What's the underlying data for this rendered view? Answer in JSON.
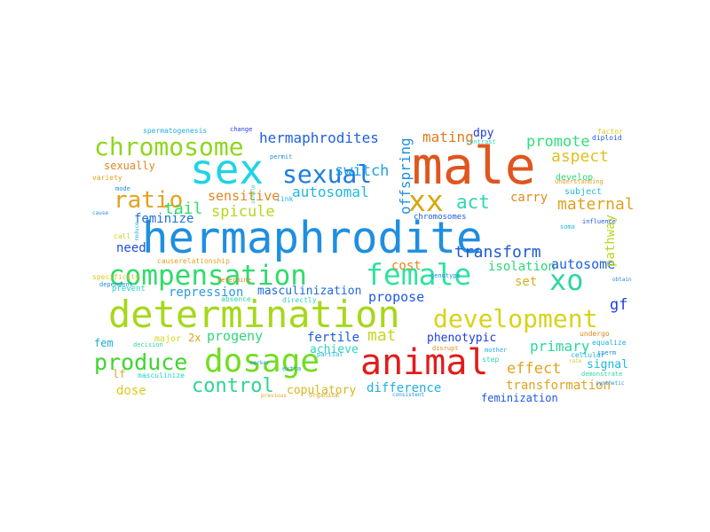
{
  "words": [
    {
      "text": "hermaphrodite",
      "color": "#1f8fe0"
    },
    {
      "text": "male",
      "color": "#e0551f"
    },
    {
      "text": "sex",
      "color": "#1fd3e6"
    },
    {
      "text": "determination",
      "color": "#a6d81a"
    },
    {
      "text": "compensation",
      "color": "#2edc6b"
    },
    {
      "text": "dosage",
      "color": "#6fde1f"
    },
    {
      "text": "animal",
      "color": "#e21c1c"
    },
    {
      "text": "chromosome",
      "color": "#8fd61f"
    },
    {
      "text": "female",
      "color": "#2ee3a0"
    },
    {
      "text": "development",
      "color": "#d9d21a"
    },
    {
      "text": "sexual",
      "color": "#1f7be0"
    },
    {
      "text": "xx",
      "color": "#d6a70f"
    },
    {
      "text": "xo",
      "color": "#2ed6a4"
    },
    {
      "text": "ratio",
      "color": "#e3a21f"
    },
    {
      "text": "produce",
      "color": "#3dd62e"
    },
    {
      "text": "control",
      "color": "#2ed68f"
    },
    {
      "text": "hermaphrodites",
      "color": "#1f5fe0"
    },
    {
      "text": "switch",
      "color": "#1f9fe0"
    },
    {
      "text": "mating",
      "color": "#e07a1f"
    },
    {
      "text": "dpy",
      "color": "#1f3ee0"
    },
    {
      "text": "promote",
      "color": "#2ee07a"
    },
    {
      "text": "aspect",
      "color": "#e0c01f"
    },
    {
      "text": "sensitive",
      "color": "#e3861f"
    },
    {
      "text": "autosomal",
      "color": "#1fb8e0"
    },
    {
      "text": "act",
      "color": "#2ed6b0"
    },
    {
      "text": "carry",
      "color": "#e08a1f"
    },
    {
      "text": "maternal",
      "color": "#e0a21f"
    },
    {
      "text": "tail",
      "color": "#2ee060"
    },
    {
      "text": "spicule",
      "color": "#b3d61f"
    },
    {
      "text": "feminize",
      "color": "#1f6fe0"
    },
    {
      "text": "transform",
      "color": "#1f5ad6"
    },
    {
      "text": "offspring",
      "color": "#1f8fe0"
    },
    {
      "text": "need",
      "color": "#1f4ee0"
    },
    {
      "text": "cost",
      "color": "#e0861f"
    },
    {
      "text": "isolation",
      "color": "#2ed67a"
    },
    {
      "text": "autosome",
      "color": "#1f5fe0"
    },
    {
      "text": "pathway",
      "color": "#b8d61f"
    },
    {
      "text": "set",
      "color": "#d6b01f"
    },
    {
      "text": "repression",
      "color": "#2e9ae0"
    },
    {
      "text": "propose",
      "color": "#1f5ae0"
    },
    {
      "text": "masculinization",
      "color": "#1f6ae0"
    },
    {
      "text": "gf",
      "color": "#1f3ee0"
    },
    {
      "text": "fem",
      "color": "#1fb0c8"
    },
    {
      "text": "progeny",
      "color": "#2ed67a"
    },
    {
      "text": "fertile",
      "color": "#1f5ae0"
    },
    {
      "text": "mat",
      "color": "#c8d61f"
    },
    {
      "text": "phenotypic",
      "color": "#1f3ee0"
    },
    {
      "text": "primary",
      "color": "#2ed6a0"
    },
    {
      "text": "achieve",
      "color": "#2ed6c0"
    },
    {
      "text": "effect",
      "color": "#e0a21f"
    },
    {
      "text": "signal",
      "color": "#1fb8e0"
    },
    {
      "text": "dose",
      "color": "#e0c81f"
    },
    {
      "text": "copulatory",
      "color": "#d6b81f"
    },
    {
      "text": "difference",
      "color": "#1fb0e0"
    },
    {
      "text": "transformation",
      "color": "#e0a21f"
    },
    {
      "text": "feminization",
      "color": "#1f5ae0"
    },
    {
      "text": "sexually",
      "color": "#e0861f"
    },
    {
      "text": "major",
      "color": "#d6d61f"
    },
    {
      "text": "2x",
      "color": "#e0a21f"
    },
    {
      "text": "lf",
      "color": "#e0a21f"
    },
    {
      "text": "spermatogenesis",
      "color": "#1fb0e0"
    },
    {
      "text": "change",
      "color": "#1f3ee0"
    },
    {
      "text": "permit",
      "color": "#1f8fe0"
    },
    {
      "text": "contrast",
      "color": "#2ed6c0"
    },
    {
      "text": "variety",
      "color": "#e0a21f"
    },
    {
      "text": "mode",
      "color": "#1f8fe0"
    },
    {
      "text": "develop",
      "color": "#2ed67a"
    },
    {
      "text": "understanding",
      "color": "#e0a21f"
    },
    {
      "text": "subject",
      "color": "#1fb8e0"
    },
    {
      "text": "factor",
      "color": "#e0c81f"
    },
    {
      "text": "diploid",
      "color": "#1f5ae0"
    },
    {
      "text": "link",
      "color": "#1fb0e0"
    },
    {
      "text": "determine",
      "color": "#e0861f"
    },
    {
      "text": "chromosomes",
      "color": "#1f5ae0"
    },
    {
      "text": "soma",
      "color": "#1fb8e0"
    },
    {
      "text": "influence",
      "color": "#1f5ae0"
    },
    {
      "text": "cause",
      "color": "#1f8fe0"
    },
    {
      "text": "call",
      "color": "#e0c81f"
    },
    {
      "text": "specificity",
      "color": "#e0c81f"
    },
    {
      "text": "dependent",
      "color": "#1f8fe0"
    },
    {
      "text": "causerelationship",
      "color": "#e0a21f"
    },
    {
      "text": "prevent",
      "color": "#1fd6c0"
    },
    {
      "text": "absence",
      "color": "#2ed6a0"
    },
    {
      "text": "directly",
      "color": "#2ed6c0"
    },
    {
      "text": "decision",
      "color": "#2ed6a0"
    },
    {
      "text": "masculinize",
      "color": "#1fd6c0"
    },
    {
      "text": "genotype",
      "color": "#1f8fe0"
    },
    {
      "text": "partial",
      "color": "#1fb0e0"
    },
    {
      "text": "extra",
      "color": "#1f8fe0"
    },
    {
      "text": "mother",
      "color": "#1fb0e0"
    },
    {
      "text": "step",
      "color": "#2ed6c0"
    },
    {
      "text": "disrupt",
      "color": "#e08a1f"
    },
    {
      "text": "organism",
      "color": "#e0a21f"
    },
    {
      "text": "consistent",
      "color": "#1f8fe0"
    },
    {
      "text": "undergo",
      "color": "#e0861f"
    },
    {
      "text": "equalize",
      "color": "#1fb0e0"
    },
    {
      "text": "cellular",
      "color": "#1fb8e0"
    },
    {
      "text": "sperm",
      "color": "#1f8fe0"
    },
    {
      "text": "demonstrate",
      "color": "#2ed6a0"
    },
    {
      "text": "rate",
      "color": "#e0c81f"
    },
    {
      "text": "synthetic",
      "color": "#1f8fe0"
    },
    {
      "text": "previous",
      "color": "#e0a21f"
    },
    {
      "text": "obtain",
      "color": "#1f8fe0"
    },
    {
      "text": "simple",
      "color": "#2ed6a0"
    },
    {
      "text": "reduce",
      "color": "#1fb0e0"
    },
    {
      "text": "marker",
      "color": "#1f8fe0"
    }
  ]
}
